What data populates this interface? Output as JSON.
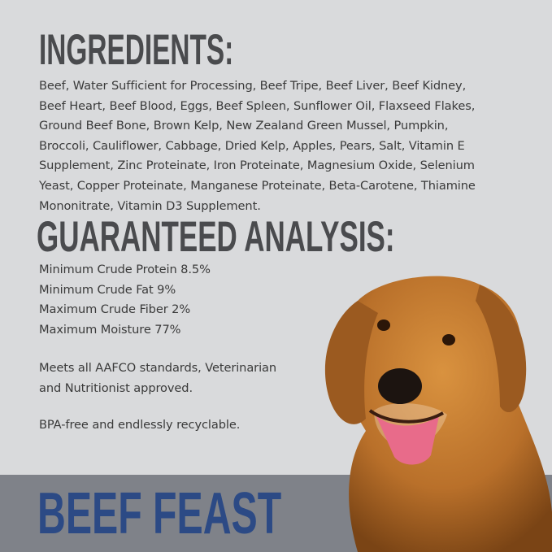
{
  "ingredients": {
    "heading": "INGREDIENTS:",
    "lines": [
      "Beef, Water Sufficient for Processing, Beef Tripe, Beef Liver, Beef Kidney,",
      "Beef Heart, Beef Blood, Eggs, Beef Spleen, Sunflower Oil, Flaxseed Flakes,",
      "Ground Beef Bone, Brown Kelp, New Zealand Green Mussel, Pumpkin,",
      "Broccoli, Cauliflower, Cabbage, Dried Kelp, Apples, Pears, Salt, Vitamin E",
      "Supplement, Zinc Proteinate, Iron Proteinate, Magnesium Oxide, Selenium",
      "Yeast, Copper Proteinate, Manganese Proteinate, Beta-Carotene, Thiamine",
      "Mononitrate, Vitamin D3 Supplement."
    ]
  },
  "analysis": {
    "heading": "GUARANTEED ANALYSIS:",
    "lines": [
      "Minimum Crude Protein 8.5%",
      "Minimum Crude Fat 9%",
      "Maximum Crude Fiber 2%",
      "Maximum Moisture 77%"
    ]
  },
  "notes": {
    "aafco": [
      "Meets all AAFCO standards, Veterinarian",
      "and Nutritionist approved."
    ],
    "bpa": "BPA-free and endlessly recyclable."
  },
  "product": {
    "name": "BEEF FEAST"
  },
  "colors": {
    "background": "#d9dadc",
    "band": "#7f8289",
    "title": "#2c4a85",
    "heading": "#4a4b4e"
  },
  "image": {
    "subject": "golden-retriever-dog"
  }
}
